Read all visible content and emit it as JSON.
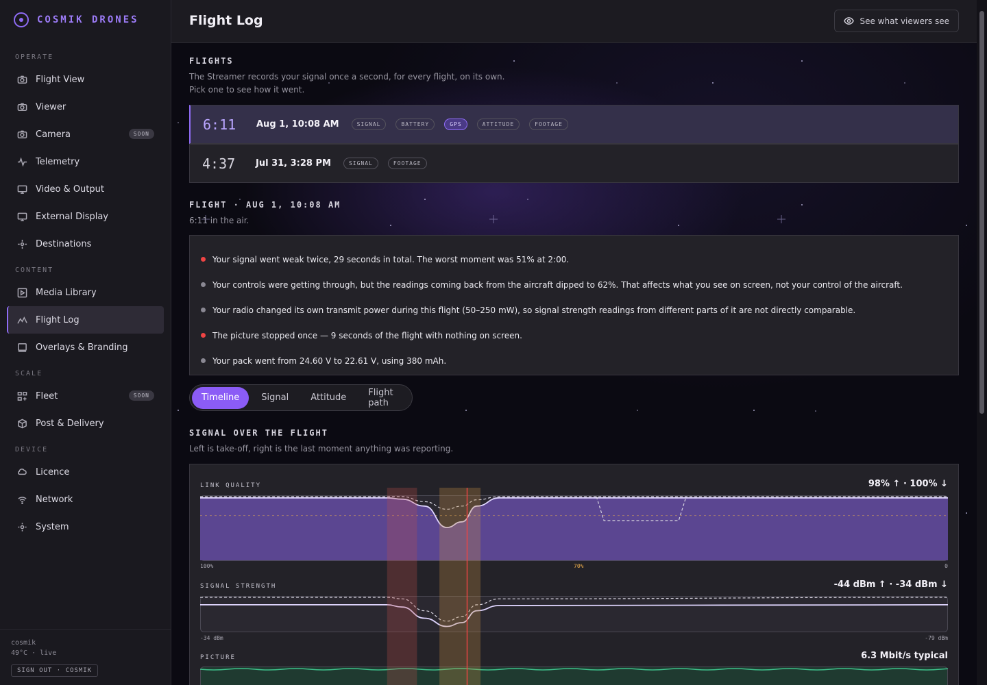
{
  "brand": {
    "name": "COSMIK DRONES",
    "icon": "target-icon",
    "accent": "#8f6cf5"
  },
  "sidebar": {
    "sections": [
      {
        "label": "OPERATE"
      },
      {
        "label": "CONTENT"
      },
      {
        "label": "SCALE"
      },
      {
        "label": "DEVICE"
      }
    ],
    "items": [
      {
        "label": "Flight View",
        "icon": "camera-icon"
      },
      {
        "label": "Viewer",
        "icon": "camera-icon"
      },
      {
        "label": "Camera",
        "icon": "camera-icon",
        "badge": "SOON"
      },
      {
        "label": "Telemetry",
        "icon": "pulse-icon"
      },
      {
        "label": "Video & Output",
        "icon": "monitor-icon"
      },
      {
        "label": "External Display",
        "icon": "monitor-icon"
      },
      {
        "label": "Destinations",
        "icon": "crosshair-icon"
      },
      {
        "label": "Media Library",
        "icon": "play-square-icon"
      },
      {
        "label": "Flight Log",
        "icon": "chart-line-icon",
        "active": true
      },
      {
        "label": "Overlays & Branding",
        "icon": "layers-icon"
      },
      {
        "label": "Fleet",
        "icon": "grid-icon",
        "badge": "SOON"
      },
      {
        "label": "Post & Delivery",
        "icon": "package-icon"
      },
      {
        "label": "Licence",
        "icon": "cloud-icon"
      },
      {
        "label": "Network",
        "icon": "wifi-icon"
      },
      {
        "label": "System",
        "icon": "gear-icon"
      }
    ],
    "footer": {
      "user": "cosmik",
      "status": "49°C · live",
      "signout": "SIGN OUT · COSMIK"
    }
  },
  "header": {
    "title": "Flight Log",
    "viewers_button": "See what viewers see",
    "viewers_icon": "eye-icon"
  },
  "flights": {
    "title": "FLIGHTS",
    "subtitle_1": "The Streamer records your signal once a second, for every flight, on its own.",
    "subtitle_2": "Pick one to see how it went.",
    "list": [
      {
        "duration": "6:11",
        "date": "Aug 1, 10:08 AM",
        "tags": [
          "SIGNAL",
          "BATTERY",
          "GPS",
          "ATTITUDE",
          "FOOTAGE"
        ],
        "highlighted_tag": "GPS",
        "selected": true
      },
      {
        "duration": "4:37",
        "date": "Jul 31, 3:28 PM",
        "tags": [
          "SIGNAL",
          "FOOTAGE"
        ],
        "selected": false
      }
    ]
  },
  "detail": {
    "title": "FLIGHT · AUG 1, 10:08 AM",
    "subtitle": "6:11 in the air.",
    "notes": [
      {
        "text": "Your signal went weak twice, 29 seconds in total. The worst moment was 51% at 2:00.",
        "severity": "bad"
      },
      {
        "text": "Your controls were getting through, but the readings coming back from the aircraft dipped to 62%. That affects what you see on screen, not your control of the aircraft.",
        "severity": "info"
      },
      {
        "text": "Your radio changed its own transmit power during this flight (50–250 mW), so signal strength readings from different parts of it are not directly comparable.",
        "severity": "info"
      },
      {
        "text": "The picture stopped once — 9 seconds of the flight with nothing on screen.",
        "severity": "bad"
      },
      {
        "text": "Your pack went from 24.60 V to 22.61 V, using 380 mAh.",
        "severity": "info"
      }
    ],
    "severity_colors": {
      "bad": "#ef4444",
      "info": "#8a8893"
    }
  },
  "tabs": [
    {
      "label": "Timeline",
      "active": true
    },
    {
      "label": "Signal",
      "active": false
    },
    {
      "label": "Attitude",
      "active": false
    },
    {
      "label": "Flight path",
      "active": false
    }
  ],
  "signal_section": {
    "title": "SIGNAL OVER THE FLIGHT",
    "subtitle": "Left is take-off, right is the last moment anything was reporting."
  },
  "chart_data": [
    {
      "type": "area",
      "title": "LINK QUALITY",
      "readout": "98% ↑ · 100% ↓",
      "tick_top": "100%",
      "tick_mid": "70%",
      "tick_bottom": "0",
      "ylim": [
        0,
        100
      ],
      "threshold": 70,
      "x": [
        0,
        25,
        27,
        30,
        33,
        35,
        37,
        40,
        100
      ],
      "series": [
        {
          "values": [
            98,
            98,
            96,
            85,
            51,
            60,
            85,
            98,
            98
          ]
        },
        {
          "values": [
            100,
            100,
            100,
            92,
            80,
            85,
            95,
            100,
            100
          ],
          "dashed": true
        }
      ],
      "uplink_dip": {
        "x": [
          53,
          54,
          64,
          65
        ],
        "values": [
          100,
          62,
          62,
          100
        ]
      }
    },
    {
      "type": "line",
      "title": "SIGNAL STRENGTH",
      "readout": "-44 dBm ↑ · -34 dBm ↓",
      "tick_top": "-34 dBm",
      "tick_bottom": "-79 dBm",
      "ylim": [
        -79,
        -34
      ],
      "x": [
        0,
        25,
        27,
        30,
        33,
        35,
        37,
        40,
        100
      ],
      "series": [
        {
          "values": [
            -44,
            -44,
            -47,
            -62,
            -73,
            -68,
            -52,
            -45,
            -44
          ]
        },
        {
          "values": [
            -34,
            -34,
            -36,
            -52,
            -66,
            -60,
            -44,
            -36,
            -34
          ],
          "dashed": true
        }
      ]
    },
    {
      "type": "area",
      "title": "PICTURE",
      "readout": "6.3 Mbit/s typical"
    }
  ],
  "chart_bands": {
    "weak_signal": {
      "x": [
        25,
        29
      ],
      "color": "#c0504d"
    },
    "no_picture": {
      "x": [
        32,
        37.5
      ],
      "color": "#c29046"
    },
    "marker": {
      "x": 35.7,
      "color": "#ef4444"
    }
  }
}
